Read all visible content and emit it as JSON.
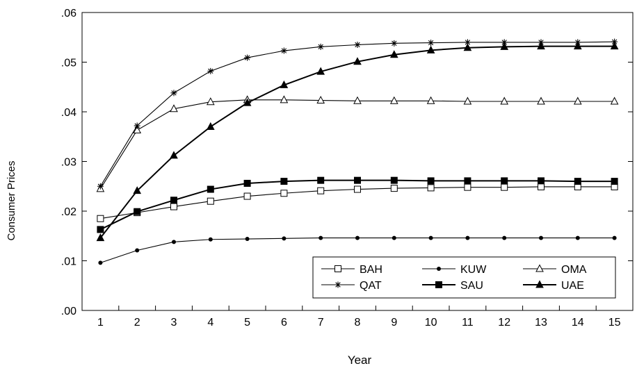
{
  "chart_data": {
    "type": "line",
    "xlabel": "Year",
    "ylabel": "Consumer Prices",
    "ylim": [
      0,
      0.06
    ],
    "xlim": [
      0.5,
      15.5
    ],
    "x": [
      1,
      2,
      3,
      4,
      5,
      6,
      7,
      8,
      9,
      10,
      11,
      12,
      13,
      14,
      15
    ],
    "y_ticks": [
      0.0,
      0.01,
      0.02,
      0.03,
      0.04,
      0.05,
      0.06
    ],
    "y_tick_labels": [
      ".00",
      ".01",
      ".02",
      ".03",
      ".04",
      ".05",
      ".06"
    ],
    "x_tick_labels": [
      "1",
      "2",
      "3",
      "4",
      "5",
      "6",
      "7",
      "8",
      "9",
      "10",
      "11",
      "12",
      "13",
      "14",
      "15"
    ],
    "grid": false,
    "legend": {
      "placement": "bottom-right",
      "columns": 3
    },
    "series": [
      {
        "name": "BAH",
        "marker": "open-square",
        "color": "#000000",
        "values": [
          0.0185,
          0.0197,
          0.0209,
          0.022,
          0.023,
          0.0236,
          0.0241,
          0.0244,
          0.0246,
          0.0247,
          0.0248,
          0.0248,
          0.0249,
          0.0249,
          0.0249
        ]
      },
      {
        "name": "KUW",
        "marker": "dot",
        "color": "#000000",
        "values": [
          0.0096,
          0.0121,
          0.0138,
          0.0143,
          0.0144,
          0.0145,
          0.0146,
          0.0146,
          0.0146,
          0.0146,
          0.0146,
          0.0146,
          0.0146,
          0.0146,
          0.0146
        ]
      },
      {
        "name": "OMA",
        "marker": "open-triangle",
        "color": "#000000",
        "values": [
          0.0245,
          0.0363,
          0.0406,
          0.042,
          0.0424,
          0.0424,
          0.0423,
          0.0422,
          0.0422,
          0.0422,
          0.0421,
          0.0421,
          0.0421,
          0.0421,
          0.0421
        ]
      },
      {
        "name": "QAT",
        "marker": "star",
        "color": "#000000",
        "values": [
          0.025,
          0.0372,
          0.0438,
          0.0482,
          0.0509,
          0.0523,
          0.0531,
          0.0535,
          0.0538,
          0.0539,
          0.054,
          0.054,
          0.054,
          0.054,
          0.0541
        ]
      },
      {
        "name": "SAU",
        "marker": "filled-square",
        "color": "#000000",
        "values": [
          0.0163,
          0.0199,
          0.0222,
          0.0244,
          0.0256,
          0.026,
          0.0262,
          0.0262,
          0.0262,
          0.0261,
          0.0261,
          0.0261,
          0.0261,
          0.026,
          0.026
        ]
      },
      {
        "name": "UAE",
        "marker": "filled-triangle",
        "color": "#000000",
        "values": [
          0.0146,
          0.0241,
          0.0312,
          0.037,
          0.0418,
          0.0454,
          0.0481,
          0.0501,
          0.0515,
          0.0524,
          0.0529,
          0.0531,
          0.0532,
          0.0532,
          0.0532
        ]
      }
    ]
  }
}
